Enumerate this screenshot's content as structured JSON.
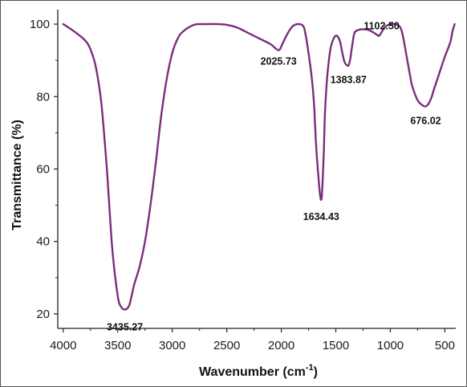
{
  "chart_data": {
    "type": "line",
    "xlabel": "Wavenumber (cm",
    "xlabel_sup": "-1",
    "xlabel_close": ")",
    "ylabel": "Transmittance (%)",
    "xlim": [
      4050,
      400
    ],
    "ylim": [
      16,
      104
    ],
    "x_reversed": true,
    "x_ticks": [
      4000,
      3500,
      3000,
      2500,
      2000,
      1500,
      1000,
      500
    ],
    "y_ticks": [
      20,
      40,
      60,
      80,
      100
    ],
    "grid": false,
    "legend": "none",
    "line_color": "#7a2e7e",
    "series": [
      {
        "x": [
          4000,
          3900,
          3800,
          3750,
          3700,
          3650,
          3600,
          3550,
          3500,
          3470,
          3435,
          3400,
          3380,
          3350,
          3300,
          3250,
          3200,
          3150,
          3100,
          3050,
          3000,
          2950,
          2900,
          2800,
          2700,
          2600,
          2500,
          2400,
          2300,
          2200,
          2100,
          2060,
          2040,
          2025,
          2010,
          1990,
          1950,
          1900,
          1850,
          1800,
          1780,
          1750,
          1720,
          1700,
          1690,
          1680,
          1660,
          1645,
          1634,
          1625,
          1610,
          1600,
          1580,
          1550,
          1520,
          1500,
          1480,
          1460,
          1440,
          1420,
          1400,
          1384,
          1370,
          1350,
          1330,
          1300,
          1280,
          1250,
          1200,
          1150,
          1120,
          1102,
          1080,
          1050,
          1000,
          960,
          920,
          900,
          880,
          850,
          820,
          800,
          750,
          700,
          676,
          650,
          620,
          600,
          550,
          500,
          450,
          430,
          410
        ],
        "y": [
          100,
          98,
          95.5,
          93,
          88,
          78,
          60,
          38,
          25,
          22,
          21.2,
          22,
          24,
          28,
          33,
          40,
          50,
          62,
          75,
          85,
          92,
          96,
          98,
          99.8,
          100,
          100,
          99.8,
          99,
          97.5,
          96,
          94.5,
          93.5,
          93,
          92.8,
          93.2,
          94.5,
          97,
          99.3,
          100,
          99.5,
          97.5,
          92,
          85,
          78,
          72,
          66,
          58,
          53,
          51.5,
          54,
          65,
          75,
          85,
          93,
          96,
          96.8,
          96.5,
          95,
          92,
          89.5,
          88.7,
          88.6,
          90,
          94,
          97.5,
          98.3,
          98.5,
          98.6,
          98.4,
          97.6,
          97,
          96.8,
          97.8,
          99.2,
          100,
          100,
          99.5,
          98.5,
          96,
          91,
          86,
          83,
          79,
          77.5,
          77.3,
          78,
          80,
          82,
          86.5,
          91,
          95,
          98,
          100
        ]
      }
    ],
    "annotations": [
      {
        "text": "3435.27",
        "x": 3435,
        "y": 21.2
      },
      {
        "text": "2025.73",
        "x": 2025,
        "y": 92.8
      },
      {
        "text": "1634.43",
        "x": 1634,
        "y": 51.5
      },
      {
        "text": "1383.87",
        "x": 1384,
        "y": 88.6
      },
      {
        "text": "1102.50",
        "x": 1102,
        "y": 96.8
      },
      {
        "text": "676.02",
        "x": 676,
        "y": 77.3
      }
    ]
  }
}
